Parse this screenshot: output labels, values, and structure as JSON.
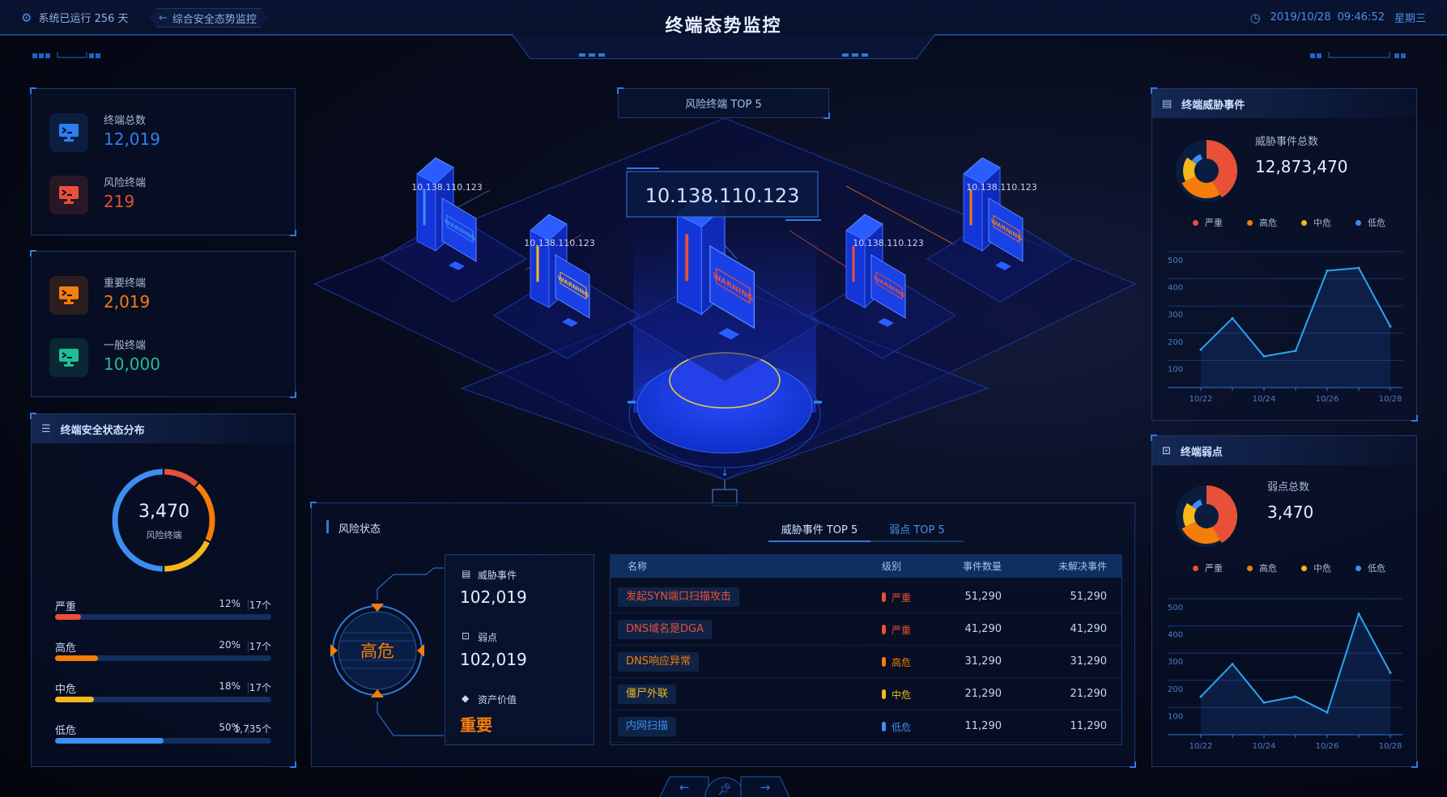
{
  "header": {
    "uptime": "系统已运行 256 天",
    "back_label": "综合安全态势监控",
    "title": "终端态势监控",
    "date": "2019/10/28",
    "time": "09:46:52",
    "weekday": "星期三",
    "accent": "#2f7ae0"
  },
  "left": {
    "stats_a": [
      {
        "label": "终端总数",
        "value": "12,019",
        "color": "#2d7ff0",
        "icon": "terminal-icon"
      },
      {
        "label": "风险终端",
        "value": "219",
        "color": "#e8503a",
        "icon": "terminal-icon"
      }
    ],
    "stats_b": [
      {
        "label": "重要终端",
        "value": "2,019",
        "color": "#f57d0a",
        "icon": "terminal-icon"
      },
      {
        "label": "一般终端",
        "value": "10,000",
        "color": "#1fbf94",
        "icon": "terminal-icon"
      }
    ],
    "distribution": {
      "title": "终端安全状态分布",
      "total": "3,470",
      "total_label": "风险终端",
      "levels": [
        {
          "label": "严重",
          "pct": "12%",
          "count": "17个",
          "value": 12,
          "color": "#e8503a"
        },
        {
          "label": "高危",
          "pct": "20%",
          "count": "17个",
          "value": 20,
          "color": "#f57d0a"
        },
        {
          "label": "中危",
          "pct": "18%",
          "count": "17个",
          "value": 18,
          "color": "#f5b81c"
        },
        {
          "label": "低危",
          "pct": "50%",
          "count": "1,735个",
          "value": 50,
          "color": "#3c8ef0"
        }
      ]
    }
  },
  "center": {
    "top_title": "风险终端 TOP 5",
    "warning_text": "WARNING",
    "terminals": [
      {
        "ip": "10.138.110.123",
        "status_color": "#3c8ef0"
      },
      {
        "ip": "10.138.110.123",
        "status_color": "#f5b81c"
      },
      {
        "ip": "10.138.110.123",
        "status_color": "#e8503a"
      },
      {
        "ip": "10.138.110.123",
        "status_color": "#e8503a"
      },
      {
        "ip": "10.138.110.123",
        "status_color": "#f57d0a"
      }
    ]
  },
  "risk": {
    "title": "风险状态",
    "level": "高危",
    "tabs": [
      {
        "label": "威胁事件 TOP 5",
        "active": true
      },
      {
        "label": "弱点 TOP 5",
        "active": false
      }
    ],
    "info": [
      {
        "label": "威胁事件",
        "value": "102,019",
        "icon": "clipboard-icon"
      },
      {
        "label": "弱点",
        "value": "102,019",
        "icon": "vulnerability-icon"
      },
      {
        "label": "资产价值",
        "value": "重要",
        "icon": "diamond-icon"
      }
    ],
    "columns": [
      "名称",
      "级别",
      "事件数量",
      "未解决事件"
    ],
    "rows": [
      {
        "name": "发起SYN端口扫描攻击",
        "level": "严重",
        "count": "51,290",
        "unresolved": "51,290",
        "color": "#e8503a"
      },
      {
        "name": "DNS域名是DGA",
        "level": "严重",
        "count": "41,290",
        "unresolved": "41,290",
        "color": "#e8503a"
      },
      {
        "name": "DNS响应异常",
        "level": "高危",
        "count": "31,290",
        "unresolved": "31,290",
        "color": "#f57d0a"
      },
      {
        "name": "僵尸外联",
        "level": "中危",
        "count": "21,290",
        "unresolved": "21,290",
        "color": "#f5b81c"
      },
      {
        "name": "内网扫描",
        "level": "低危",
        "count": "11,290",
        "unresolved": "11,290",
        "color": "#3c8ef0"
      }
    ]
  },
  "right": {
    "threats": {
      "title": "终端威胁事件",
      "total_label": "威胁事件总数",
      "total": "12,873,470"
    },
    "vulns": {
      "title": "终端弱点",
      "total_label": "弱点总数",
      "total": "3,470"
    },
    "legend": [
      {
        "label": "严重",
        "color": "#e8503a"
      },
      {
        "label": "高危",
        "color": "#f57d0a"
      },
      {
        "label": "中危",
        "color": "#f5b81c"
      },
      {
        "label": "低危",
        "color": "#3c8ef0"
      }
    ]
  },
  "chart_data": [
    {
      "id": "threat-rose",
      "type": "pie",
      "categories": [
        "严重",
        "高危",
        "中危",
        "低危"
      ],
      "values": [
        42,
        26,
        17,
        10
      ]
    },
    {
      "id": "threat-trend",
      "type": "area",
      "x": [
        "10/22",
        "10/23",
        "10/24",
        "10/25",
        "10/26",
        "10/27",
        "10/28"
      ],
      "tick_labels": [
        "10/22",
        "10/24",
        "10/26",
        "10/28"
      ],
      "values": [
        140,
        255,
        115,
        135,
        430,
        440,
        225
      ],
      "ylim": [
        0,
        500
      ],
      "yticks": [
        100,
        200,
        300,
        400,
        500
      ],
      "grid": true
    },
    {
      "id": "vuln-rose",
      "type": "pie",
      "categories": [
        "严重",
        "高危",
        "中危",
        "低危"
      ],
      "values": [
        42,
        26,
        17,
        10
      ]
    },
    {
      "id": "vuln-trend",
      "type": "area",
      "x": [
        "10/22",
        "10/23",
        "10/24",
        "10/25",
        "10/26",
        "10/27",
        "10/28"
      ],
      "tick_labels": [
        "10/22",
        "10/24",
        "10/26",
        "10/28"
      ],
      "values": [
        140,
        260,
        118,
        140,
        82,
        445,
        228
      ],
      "ylim": [
        0,
        500
      ],
      "yticks": [
        100,
        200,
        300,
        400,
        500
      ],
      "grid": true
    }
  ]
}
